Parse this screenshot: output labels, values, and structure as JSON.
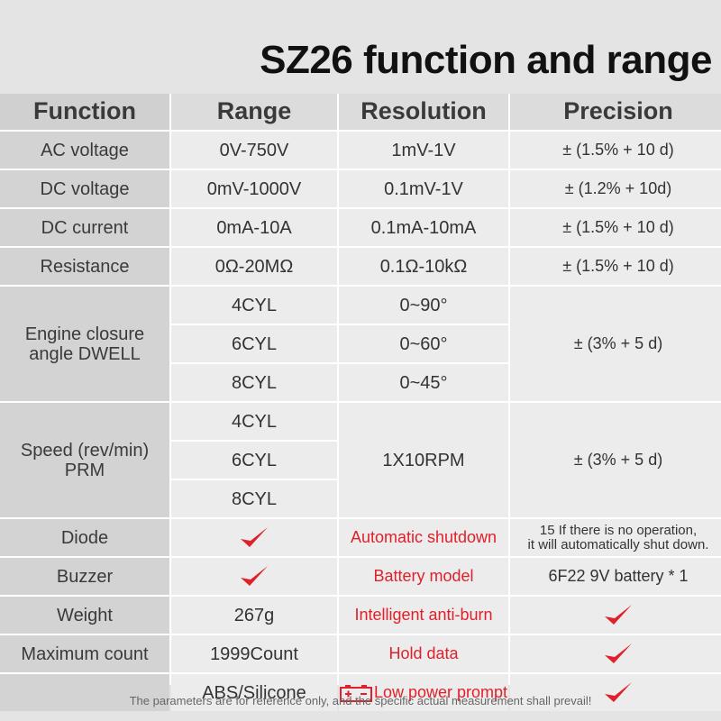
{
  "title": "SZ26 function and range",
  "header": {
    "function": "Function",
    "range": "Range",
    "resolution": "Resolution",
    "precision": "Precision"
  },
  "rows": {
    "ac_voltage": {
      "function": "AC voltage",
      "range": "0V-750V",
      "resolution": "1mV-1V",
      "precision": "± (1.5% + 10 d)"
    },
    "dc_voltage": {
      "function": "DC voltage",
      "range": "0mV-1000V",
      "resolution": "0.1mV-1V",
      "precision": "± (1.2% + 10d)"
    },
    "dc_current": {
      "function": "DC current",
      "range": "0mA-10A",
      "resolution": "0.1mA-10mA",
      "precision": "± (1.5% + 10 d)"
    },
    "resistance": {
      "function": "Resistance",
      "range": "0Ω-20MΩ",
      "resolution": "0.1Ω-10kΩ",
      "precision": "± (1.5% + 10 d)"
    },
    "dwell": {
      "function_line1": "Engine closure",
      "function_line2": "angle DWELL",
      "ranges": [
        "4CYL",
        "6CYL",
        "8CYL"
      ],
      "resolutions": [
        "0~90°",
        "0~60°",
        "0~45°"
      ],
      "precision": "± (3% + 5 d)"
    },
    "speed": {
      "function_line1": "Speed (rev/min)",
      "function_line2": "PRM",
      "ranges": [
        "4CYL",
        "6CYL",
        "8CYL"
      ],
      "resolution": "1X10RPM",
      "precision": "± (3% + 5 d)"
    },
    "diode": {
      "function": "Diode",
      "feature": "Automatic shutdown",
      "feature_value_line1": "15 If there is no operation,",
      "feature_value_line2": "it will automatically shut down."
    },
    "buzzer": {
      "function": "Buzzer",
      "feature": "Battery model",
      "feature_value": "6F22 9V battery * 1"
    },
    "weight": {
      "function": "Weight",
      "range": "267g",
      "feature": "Intelligent anti-burn"
    },
    "max_count": {
      "function": "Maximum count",
      "range": "1999Count",
      "feature": "Hold data"
    },
    "material": {
      "function": "",
      "range": "ABS/Silicone",
      "feature": "Low power prompt"
    }
  },
  "footer": "The parameters are for reference only, and the specific actual measurement shall prevail!",
  "colors": {
    "check": "#e0202a",
    "feature_text": "#e0202a",
    "function_col_bg": "#d3d3d3",
    "cell_bg": "#ececec"
  },
  "icons": {
    "check": "check-icon",
    "battery": "battery-icon"
  }
}
